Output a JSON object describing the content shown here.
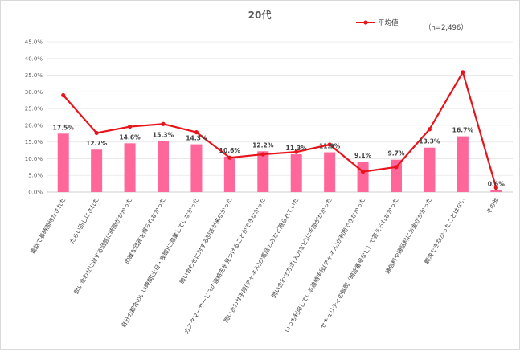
{
  "chart_data": {
    "type": "bar",
    "title": "20代",
    "note": "（n=2,496）",
    "categories": [
      "電話で長時間待たされた",
      "たらい回しにされた",
      "問い合わせに対する回答に時間がかかった",
      "的確な回答を得られなかった",
      "自分の都合のいい時間(土日・夜間)に営業していなかった",
      "問い合わせに対する回答が来なかった",
      "カスタマーサービスの連絡先を見つけることができなかった",
      "問い合わせ手段(チャネル)が電話のみなど限られていた",
      "問い合わせ方法(入力など)に手間がかかった",
      "いつも利用している連絡手段(チャネル)が利用できなかった",
      "セキュリティの質問（暗証番号など）で答えられなかった",
      "通信料や通話料にお金がかかった",
      "解決できなかったことはない",
      "その他"
    ],
    "series": [
      {
        "type": "bar",
        "values": [
          17.5,
          12.7,
          14.6,
          15.3,
          14.3,
          10.6,
          12.2,
          11.3,
          11.9,
          9.1,
          9.7,
          13.3,
          16.7,
          0.6
        ],
        "labels": [
          "17.5%",
          "12.7%",
          "14.6%",
          "15.3%",
          "14.3%",
          "10.6%",
          "12.2%",
          "11.3%",
          "11.9%",
          "9.1%",
          "9.7%",
          "13.3%",
          "16.7%",
          "0.6%"
        ],
        "color": "#ff6699"
      },
      {
        "type": "line",
        "name": "平均値",
        "values": [
          29.0,
          17.7,
          19.6,
          20.4,
          17.9,
          10.3,
          11.3,
          12.0,
          14.2,
          6.1,
          7.5,
          18.8,
          35.9,
          1.3
        ],
        "color": "#e8141b"
      }
    ],
    "ylim": [
      0,
      45
    ],
    "yticks": [
      0,
      5,
      10,
      15,
      20,
      25,
      30,
      35,
      40,
      45
    ],
    "ytick_labels": [
      "0.0%",
      "5.0%",
      "10.0%",
      "15.0%",
      "20.0%",
      "25.0%",
      "30.0%",
      "35.0%",
      "40.0%",
      "45.0%"
    ],
    "grid": true,
    "legend_position": "top-right"
  }
}
